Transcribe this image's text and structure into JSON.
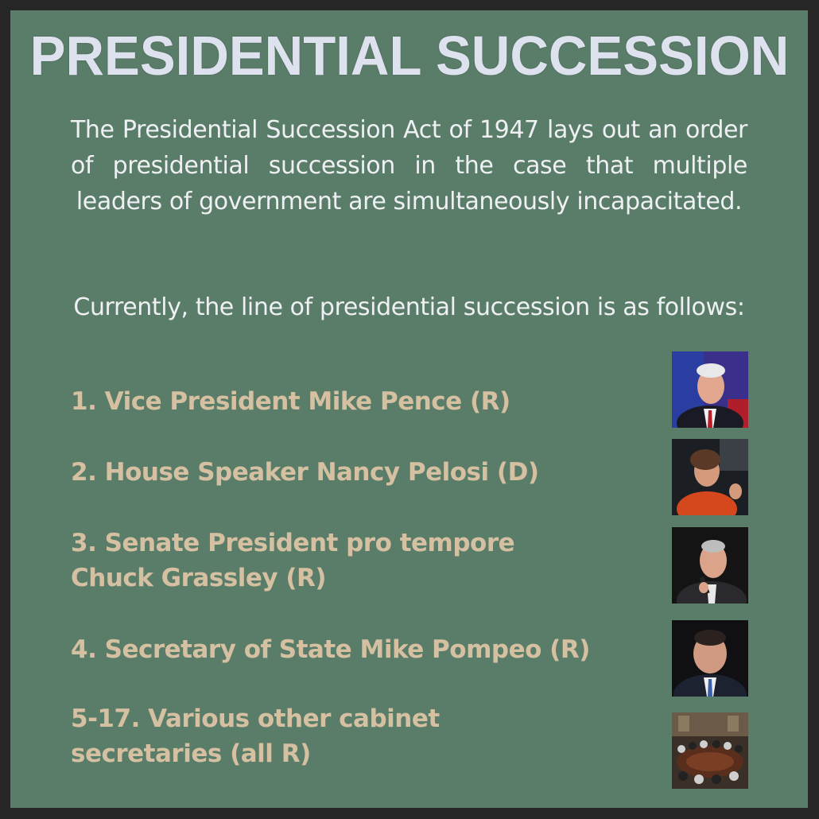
{
  "title": "PRESIDENTIAL SUCCESSION",
  "intro": "The Presidential Succession Act of 1947 lays out an order of presidential succession in the case that multiple leaders of government are simultaneously incapacitated.",
  "intro2": "Currently, the line of presidential succession is as follows:",
  "items": [
    {
      "line1": "1. Vice President Mike Pence (R)",
      "line2": ""
    },
    {
      "line1": "2. House Speaker Nancy Pelosi (D)",
      "line2": ""
    },
    {
      "line1": "3. Senate President pro tempore",
      "line2": "Chuck Grassley (R)"
    },
    {
      "line1": "4. Secretary of State Mike Pompeo (R)",
      "line2": ""
    },
    {
      "line1": "5-17. Various other cabinet",
      "line2": "secretaries (all R)"
    }
  ],
  "colors": {
    "frame": "#262626",
    "card": "#5a7d69",
    "title": "#dee2ee",
    "body_text": "#eef0f3",
    "list_text": "#d6c0a2"
  }
}
